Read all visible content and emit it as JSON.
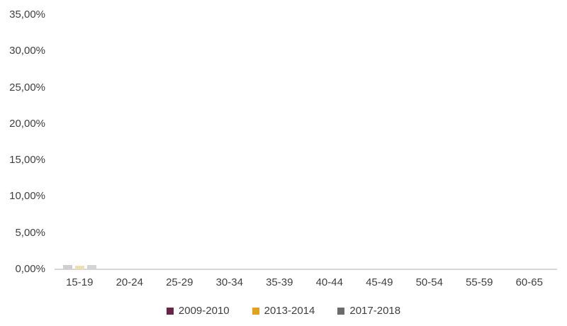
{
  "chart_data": {
    "type": "bar",
    "title": "",
    "background": "#ffffff",
    "grid": false,
    "categories": [
      "15-19",
      "20-24",
      "25-29",
      "30-34",
      "35-39",
      "40-44",
      "45-49",
      "50-54",
      "55-59",
      "60-65"
    ],
    "series": [
      {
        "name": "2009-2010",
        "color": "#6B2346",
        "bar_color": "#d2cdd0",
        "values": [
          0.6,
          0,
          0,
          0,
          0,
          0,
          0,
          0,
          0,
          0
        ]
      },
      {
        "name": "2013-2014",
        "color": "#E3A21D",
        "bar_color": "#ece0b2",
        "values": [
          0.5,
          0,
          0,
          0,
          0,
          0,
          0,
          0,
          0,
          0
        ]
      },
      {
        "name": "2017-2018",
        "color": "#6B6B6B",
        "bar_color": "#d4d4d4",
        "values": [
          0.6,
          0,
          0,
          0,
          0,
          0,
          0,
          0,
          0,
          0
        ]
      }
    ],
    "y_axis": {
      "min": 0,
      "max": 35,
      "step": 5,
      "format": "percent-comma",
      "ticks": [
        {
          "value": 0,
          "label": "0,00%"
        },
        {
          "value": 5,
          "label": "5,00%"
        },
        {
          "value": 10,
          "label": "10,00%"
        },
        {
          "value": 15,
          "label": "15,00%"
        },
        {
          "value": 20,
          "label": "20,00%"
        },
        {
          "value": 25,
          "label": "25,00%"
        },
        {
          "value": 30,
          "label": "30,00%"
        },
        {
          "value": 35,
          "label": "35,00%"
        }
      ]
    },
    "x_axis": {
      "label": ""
    },
    "legend": {
      "position": "bottom"
    }
  }
}
